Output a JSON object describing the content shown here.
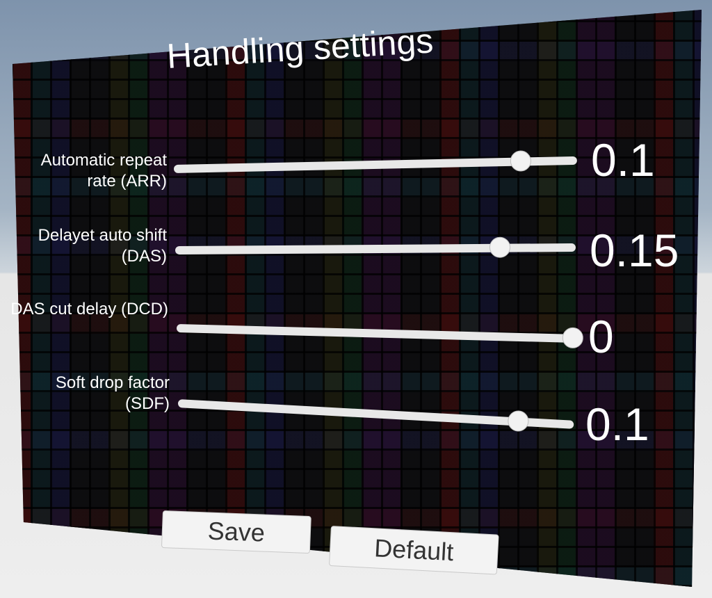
{
  "screen": {
    "title": "Handling settings",
    "sliders": [
      {
        "label": "Automatic repeat rate (ARR)",
        "value": "0.1",
        "fill": 0.86
      },
      {
        "label": "Delayet auto shift (DAS)",
        "value": "0.15",
        "fill": 0.81
      },
      {
        "label": "DAS cut delay (DCD)",
        "value": "0",
        "fill": 1.0
      },
      {
        "label": "Soft drop factor (SDF)",
        "value": "0.1",
        "fill": 0.86
      }
    ],
    "buttons": {
      "save": "Save",
      "default": "Default"
    }
  }
}
